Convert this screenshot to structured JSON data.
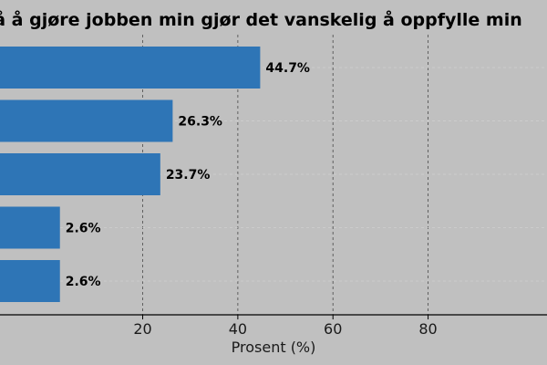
{
  "chart_data": {
    "type": "bar",
    "orientation": "horizontal",
    "title": "å å gjøre jobben min gjør det vanskelig å oppfylle min",
    "xlabel": "Prosent (%)",
    "ylabel": "",
    "xlim": [
      -10,
      105
    ],
    "xticks": [
      20,
      40,
      60,
      80
    ],
    "grid": "x-dashed",
    "values": [
      44.7,
      26.3,
      23.7,
      2.6,
      2.6
    ],
    "data_labels": [
      "44.7%",
      "26.3%",
      "23.7%",
      "2.6%",
      "2.6%"
    ],
    "bar_color": "#2e75b6"
  }
}
